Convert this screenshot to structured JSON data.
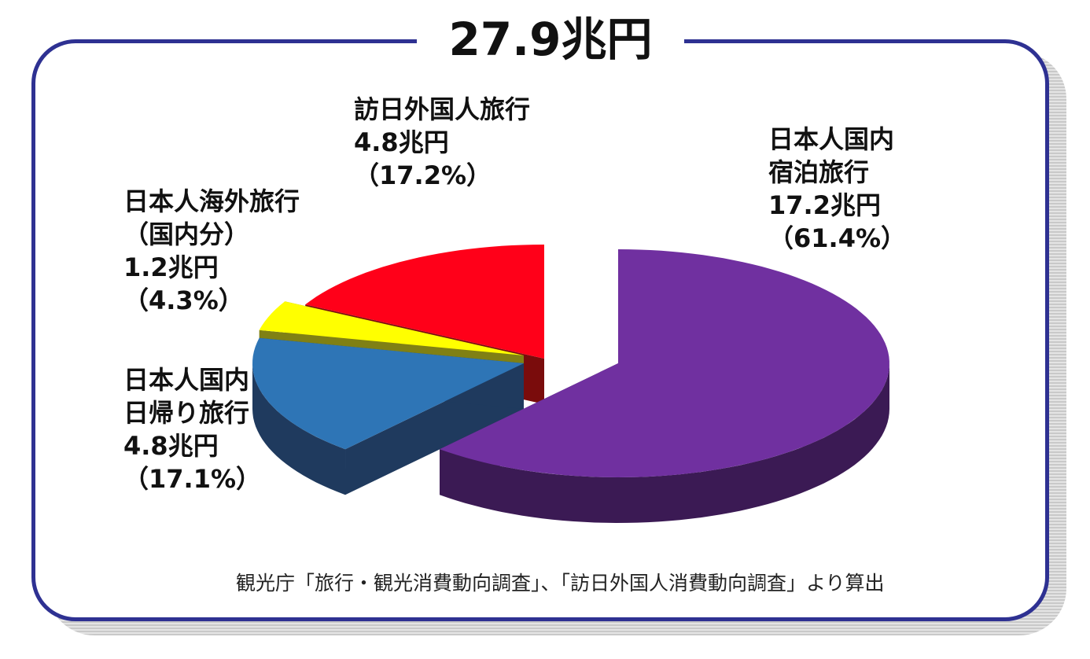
{
  "title": "27.9兆円",
  "source": "観光庁「旅行・観光消費動向調査」、「訪日外国人消費動向調査」より算出",
  "chart_data": {
    "type": "pie",
    "title": "27.9兆円",
    "total": "27.9兆円",
    "exploded": true,
    "three_d": true,
    "slices": [
      {
        "key": "domestic_stay",
        "lines": [
          "日本人国内",
          "宿泊旅行"
        ],
        "value_text": "17.2兆円",
        "pct_text": "（61.4%）",
        "value": 17.2,
        "percent": 61.4,
        "color": "#7030a0",
        "side": "#3b1a54"
      },
      {
        "key": "domestic_day",
        "lines": [
          "日本人国内",
          "日帰り旅行"
        ],
        "value_text": "4.8兆円",
        "pct_text": "（17.1%）",
        "value": 4.8,
        "percent": 17.1,
        "color": "#2e75b6",
        "side": "#1f3a5e"
      },
      {
        "key": "outbound_domestic",
        "lines": [
          "日本人海外旅行",
          "（国内分）"
        ],
        "value_text": "1.2兆円",
        "pct_text": "（4.3%）",
        "value": 1.2,
        "percent": 4.3,
        "color": "#ffff00",
        "side": "#808014"
      },
      {
        "key": "inbound",
        "lines": [
          "訪日外国人旅行"
        ],
        "value_text": "4.8兆円",
        "pct_text": "（17.2%）",
        "value": 4.8,
        "percent": 17.2,
        "color": "#ff0019",
        "side": "#7a0c0c"
      }
    ]
  }
}
